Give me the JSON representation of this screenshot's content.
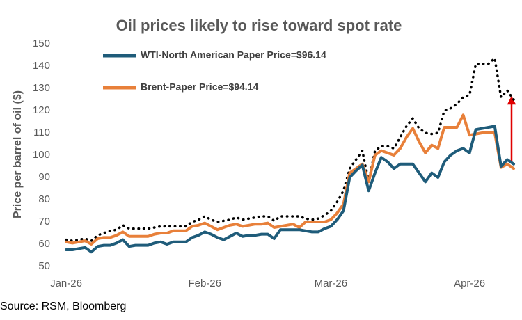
{
  "chart_data": {
    "type": "line",
    "title": "Oil prices likely to rise toward spot rate",
    "y_label": "Price per barrel of oil ($)",
    "source": "Source: RSM, Bloomberg",
    "categories": [
      "Jan-26",
      null,
      null,
      null,
      null,
      null,
      null,
      null,
      null,
      null,
      null,
      null,
      null,
      null,
      null,
      null,
      null,
      null,
      null,
      null,
      null,
      null,
      "Feb-26",
      null,
      null,
      null,
      null,
      null,
      null,
      null,
      null,
      null,
      null,
      null,
      null,
      null,
      null,
      null,
      null,
      null,
      null,
      null,
      "Mar-26",
      null,
      null,
      null,
      null,
      null,
      null,
      null,
      null,
      null,
      null,
      null,
      null,
      null,
      null,
      null,
      null,
      null,
      null,
      null,
      null,
      null,
      "Apr-26",
      null,
      null,
      null,
      null,
      null,
      null,
      null
    ],
    "series": [
      {
        "name": "WTI-North American Paper Price=$96.14",
        "color": "#1f5c7a",
        "style": "solid",
        "values": [
          57.5,
          57.5,
          58,
          58.5,
          56.5,
          59,
          59.5,
          59.5,
          60.5,
          62,
          59,
          59.5,
          59.5,
          59.5,
          60.5,
          61,
          60,
          61,
          61,
          61,
          63,
          64,
          65.5,
          64.5,
          63,
          62,
          63.5,
          65,
          63.5,
          64,
          64,
          64.5,
          64.5,
          62.5,
          66.5,
          66.5,
          66.5,
          66.5,
          66,
          65.5,
          65.5,
          67,
          68,
          71,
          75,
          90,
          93,
          95.5,
          84,
          92,
          99,
          97,
          94,
          96,
          96,
          96,
          92,
          88,
          92,
          90,
          97,
          100,
          102,
          103,
          101,
          111.5,
          112,
          112.5,
          113,
          95,
          98,
          96
        ]
      },
      {
        "name": "Brent-Paper Price=$94.14",
        "color": "#e8803a",
        "style": "solid",
        "values": [
          61,
          60.5,
          61,
          61.5,
          60,
          62.5,
          63,
          63,
          64,
          65.5,
          63.5,
          63.5,
          63.5,
          63.5,
          64.5,
          65,
          65,
          66,
          66,
          66,
          68,
          68.5,
          69.5,
          68,
          66.5,
          67.5,
          68.5,
          69,
          68,
          68.5,
          69,
          69,
          69.5,
          67.5,
          68,
          68.5,
          69,
          67.5,
          70,
          70,
          70,
          70,
          71,
          74,
          78,
          92,
          94,
          96,
          88,
          100,
          102,
          101,
          100,
          103,
          108,
          112,
          106,
          101,
          104.5,
          103,
          112.5,
          112.5,
          112.5,
          118,
          109,
          109.5,
          110,
          110,
          110,
          94.5,
          96,
          94
        ]
      },
      {
        "color": "#000000",
        "style": "dotted",
        "values": [
          62,
          61.5,
          62,
          62.5,
          61.5,
          64,
          65,
          66,
          66.5,
          68.5,
          67,
          67,
          67,
          67,
          67.5,
          68,
          68,
          68,
          68,
          68,
          70,
          71,
          72.5,
          71,
          70,
          70.5,
          71,
          72,
          71,
          71.5,
          72,
          72.5,
          72.5,
          70.5,
          72.5,
          72.5,
          72.5,
          72.5,
          71.5,
          71,
          71.5,
          73,
          75,
          79,
          84,
          94,
          98,
          102,
          88,
          102,
          104,
          104,
          103,
          108,
          113,
          116.5,
          112,
          110,
          109.5,
          110,
          120,
          121,
          123,
          126,
          127,
          141,
          141,
          141,
          143.5,
          126,
          129,
          125
        ]
      }
    ],
    "ylim": [
      50,
      150
    ],
    "yticks": [
      50,
      60,
      70,
      80,
      90,
      100,
      110,
      120,
      130,
      140,
      150
    ],
    "grid": false
  }
}
